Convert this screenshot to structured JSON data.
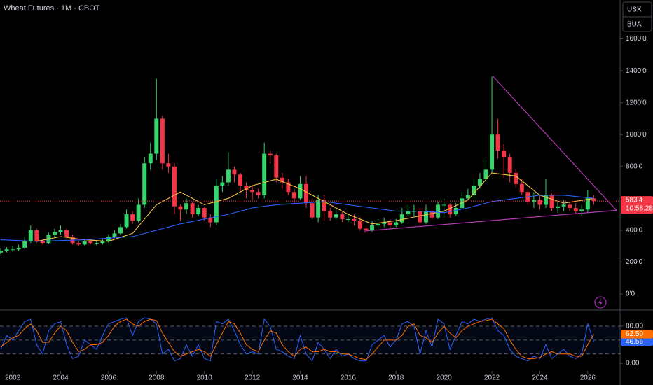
{
  "toolbar": {
    "currency": "USX",
    "unit": "BUA"
  },
  "chart_data": [
    {
      "type": "candlestick",
      "title": "Wheat Futures · 1M · CBOT",
      "xlim": [
        2001.47,
        2027.35
      ],
      "ylim": [
        -101,
        1844
      ],
      "xticks": [
        2002,
        2004,
        2006,
        2008,
        2010,
        2012,
        2014,
        2016,
        2018,
        2020,
        2022,
        2024,
        2026
      ],
      "yticks": [
        {
          "value": 0,
          "label": "0'0"
        },
        {
          "value": 200,
          "label": "200'0"
        },
        {
          "value": 400,
          "label": "400'0"
        },
        {
          "value": 800,
          "label": "800'0"
        },
        {
          "value": 1000,
          "label": "1000'0"
        },
        {
          "value": 1200,
          "label": "1200'0"
        },
        {
          "value": 1400,
          "label": "1400'0"
        },
        {
          "value": 1600,
          "label": "1600'0"
        }
      ],
      "up_color": "#36d46a",
      "down_color": "#f23645",
      "x": [
        2001.5,
        2001.75,
        2002,
        2002.25,
        2002.5,
        2002.75,
        2003,
        2003.25,
        2003.5,
        2003.75,
        2004,
        2004.25,
        2004.5,
        2004.75,
        2005,
        2005.25,
        2005.5,
        2005.75,
        2006,
        2006.25,
        2006.5,
        2006.75,
        2007,
        2007.25,
        2007.5,
        2007.75,
        2008,
        2008.25,
        2008.5,
        2008.75,
        2009,
        2009.25,
        2009.5,
        2009.75,
        2010,
        2010.25,
        2010.5,
        2010.75,
        2011,
        2011.25,
        2011.5,
        2011.75,
        2012,
        2012.25,
        2012.5,
        2012.75,
        2013,
        2013.25,
        2013.5,
        2013.75,
        2014,
        2014.25,
        2014.5,
        2014.75,
        2015,
        2015.25,
        2015.5,
        2015.75,
        2016,
        2016.25,
        2016.5,
        2016.75,
        2017,
        2017.25,
        2017.5,
        2017.75,
        2018,
        2018.25,
        2018.5,
        2018.75,
        2019,
        2019.25,
        2019.5,
        2019.75,
        2020,
        2020.25,
        2020.5,
        2020.75,
        2021,
        2021.25,
        2021.5,
        2021.75,
        2022,
        2022.25,
        2022.5,
        2022.75,
        2023,
        2023.25,
        2023.5,
        2023.75,
        2024,
        2024.25,
        2024.5,
        2024.75,
        2025,
        2025.25,
        2025.5,
        2025.75,
        2026,
        2026.25
      ],
      "open": [
        260,
        270,
        280,
        280,
        290,
        330,
        400,
        330,
        320,
        370,
        390,
        400,
        360,
        320,
        310,
        330,
        320,
        320,
        330,
        360,
        380,
        420,
        500,
        460,
        560,
        820,
        880,
        1100,
        820,
        800,
        550,
        530,
        570,
        500,
        540,
        480,
        450,
        680,
        700,
        780,
        750,
        680,
        650,
        640,
        620,
        880,
        870,
        730,
        700,
        640,
        600,
        690,
        570,
        480,
        590,
        520,
        480,
        500,
        470,
        470,
        460,
        410,
        400,
        430,
        440,
        450,
        430,
        450,
        500,
        520,
        520,
        450,
        520,
        480,
        560,
        560,
        500,
        540,
        600,
        620,
        680,
        720,
        780,
        1000,
        900,
        860,
        760,
        690,
        640,
        580,
        590,
        560,
        620,
        540,
        550,
        560,
        540,
        520,
        530,
        600
      ],
      "high": [
        285,
        295,
        300,
        310,
        360,
        430,
        410,
        345,
        385,
        410,
        430,
        410,
        370,
        335,
        345,
        340,
        335,
        345,
        375,
        400,
        440,
        530,
        520,
        600,
        860,
        950,
        1349,
        1120,
        880,
        820,
        560,
        600,
        580,
        560,
        550,
        500,
        720,
        740,
        890,
        800,
        760,
        700,
        680,
        660,
        950,
        900,
        880,
        760,
        720,
        660,
        740,
        740,
        600,
        620,
        620,
        540,
        530,
        520,
        500,
        500,
        480,
        430,
        460,
        470,
        480,
        470,
        470,
        540,
        560,
        560,
        540,
        560,
        540,
        580,
        600,
        570,
        570,
        640,
        660,
        720,
        760,
        840,
        1364,
        1100,
        940,
        880,
        780,
        720,
        660,
        640,
        620,
        720,
        630,
        580,
        590,
        580,
        570,
        560,
        650,
        620
      ],
      "low": [
        250,
        260,
        265,
        270,
        280,
        320,
        320,
        310,
        315,
        355,
        370,
        350,
        310,
        300,
        305,
        310,
        305,
        310,
        320,
        350,
        370,
        410,
        440,
        450,
        540,
        780,
        840,
        780,
        760,
        500,
        460,
        500,
        480,
        490,
        460,
        420,
        430,
        640,
        680,
        700,
        640,
        600,
        590,
        600,
        600,
        820,
        700,
        660,
        620,
        570,
        590,
        540,
        470,
        450,
        460,
        460,
        470,
        450,
        450,
        430,
        400,
        380,
        390,
        410,
        420,
        410,
        420,
        440,
        490,
        490,
        420,
        440,
        470,
        470,
        480,
        480,
        490,
        530,
        590,
        600,
        660,
        700,
        760,
        850,
        730,
        700,
        670,
        620,
        560,
        540,
        530,
        540,
        520,
        510,
        520,
        520,
        500,
        490,
        510,
        560
      ],
      "close": [
        270,
        280,
        280,
        290,
        330,
        400,
        330,
        320,
        370,
        390,
        400,
        360,
        320,
        310,
        330,
        320,
        320,
        330,
        360,
        380,
        420,
        500,
        460,
        560,
        820,
        880,
        1100,
        820,
        800,
        550,
        530,
        570,
        500,
        540,
        480,
        450,
        680,
        700,
        780,
        750,
        680,
        650,
        640,
        620,
        880,
        870,
        730,
        700,
        640,
        600,
        690,
        570,
        480,
        590,
        520,
        480,
        500,
        470,
        470,
        460,
        410,
        400,
        430,
        440,
        450,
        430,
        450,
        500,
        520,
        520,
        450,
        520,
        480,
        560,
        560,
        500,
        540,
        600,
        620,
        680,
        720,
        780,
        1000,
        900,
        860,
        760,
        690,
        640,
        580,
        590,
        560,
        620,
        540,
        550,
        560,
        540,
        520,
        530,
        600,
        583.5
      ],
      "last_price_label": "583'4",
      "countdown": "10:58:28",
      "price_line_color": "#f23645",
      "series": [
        {
          "color": "#f5c542",
          "x": [
            2003,
            2004,
            2005,
            2006,
            2007,
            2008,
            2009,
            2010,
            2011,
            2012,
            2013,
            2014,
            2015,
            2016,
            2017,
            2018,
            2019,
            2020,
            2021,
            2022,
            2023,
            2024,
            2025,
            2026.25
          ],
          "values": [
            330,
            360,
            340,
            330,
            380,
            560,
            640,
            560,
            600,
            680,
            720,
            660,
            580,
            500,
            440,
            460,
            490,
            520,
            590,
            760,
            740,
            620,
            570,
            600
          ]
        },
        {
          "color": "#2962ff",
          "x": [
            2001.5,
            2003,
            2005,
            2007,
            2008,
            2009,
            2010,
            2011,
            2012,
            2013,
            2014,
            2015,
            2016,
            2017,
            2018,
            2019,
            2020,
            2021,
            2022,
            2023,
            2024,
            2025,
            2026.25
          ],
          "values": [
            340,
            330,
            340,
            360,
            400,
            440,
            470,
            500,
            540,
            560,
            570,
            580,
            560,
            540,
            520,
            520,
            510,
            540,
            580,
            600,
            620,
            620,
            600
          ]
        }
      ],
      "drawings": [
        {
          "color": "#c13cc1",
          "x": [
            2022.05,
            2027.2
          ],
          "y": [
            1364,
            525
          ]
        },
        {
          "color": "#c13cc1",
          "x": [
            2016.65,
            2027.2
          ],
          "y": [
            395,
            525
          ]
        }
      ]
    },
    {
      "type": "line",
      "xlim": [
        2001.47,
        2027.35
      ],
      "ylim": [
        -16.6,
        114.7
      ],
      "yticks": [
        {
          "value": 80,
          "label": "80.00"
        },
        {
          "value": 0,
          "label": "0.00"
        }
      ],
      "levels": [
        20,
        50,
        80
      ],
      "x": [
        2001.5,
        2001.75,
        2002,
        2002.25,
        2002.5,
        2002.75,
        2003,
        2003.25,
        2003.5,
        2003.75,
        2004,
        2004.25,
        2004.5,
        2004.75,
        2005,
        2005.25,
        2005.5,
        2005.75,
        2006,
        2006.25,
        2006.5,
        2006.75,
        2007,
        2007.25,
        2007.5,
        2007.75,
        2008,
        2008.25,
        2008.5,
        2008.75,
        2009,
        2009.25,
        2009.5,
        2009.75,
        2010,
        2010.25,
        2010.5,
        2010.75,
        2011,
        2011.25,
        2011.5,
        2011.75,
        2012,
        2012.25,
        2012.5,
        2012.75,
        2013,
        2013.25,
        2013.5,
        2013.75,
        2014,
        2014.25,
        2014.5,
        2014.75,
        2015,
        2015.25,
        2015.5,
        2015.75,
        2016,
        2016.25,
        2016.5,
        2016.75,
        2017,
        2017.25,
        2017.5,
        2017.75,
        2018,
        2018.25,
        2018.5,
        2018.75,
        2019,
        2019.25,
        2019.5,
        2019.75,
        2020,
        2020.25,
        2020.5,
        2020.75,
        2021,
        2021.25,
        2021.5,
        2021.75,
        2022,
        2022.25,
        2022.5,
        2022.75,
        2023,
        2023.25,
        2023.5,
        2023.75,
        2024,
        2024.25,
        2024.5,
        2024.75,
        2025,
        2025.25,
        2025.5,
        2025.75,
        2026,
        2026.25
      ],
      "series": [
        {
          "color": "#2962ff",
          "last_value_label": "46.56",
          "values": [
            30,
            60,
            50,
            70,
            90,
            95,
            40,
            20,
            70,
            85,
            90,
            40,
            10,
            15,
            50,
            40,
            30,
            60,
            85,
            90,
            95,
            98,
            60,
            90,
            98,
            95,
            85,
            20,
            30,
            5,
            10,
            40,
            15,
            40,
            10,
            5,
            90,
            85,
            95,
            70,
            40,
            20,
            25,
            20,
            95,
            80,
            30,
            25,
            15,
            10,
            60,
            20,
            5,
            45,
            30,
            10,
            30,
            15,
            20,
            10,
            5,
            5,
            40,
            50,
            60,
            35,
            50,
            85,
            90,
            80,
            20,
            70,
            35,
            95,
            85,
            30,
            60,
            90,
            85,
            95,
            90,
            95,
            98,
            70,
            60,
            30,
            15,
            10,
            5,
            15,
            10,
            40,
            10,
            20,
            30,
            15,
            10,
            20,
            85,
            46.56
          ]
        },
        {
          "color": "#ff6d00",
          "last_value_label": "62.50",
          "values": [
            35,
            45,
            55,
            60,
            75,
            85,
            70,
            45,
            45,
            65,
            80,
            70,
            45,
            25,
            30,
            40,
            40,
            45,
            60,
            80,
            90,
            95,
            85,
            80,
            90,
            95,
            92,
            65,
            45,
            25,
            15,
            20,
            25,
            30,
            25,
            15,
            40,
            65,
            90,
            85,
            65,
            40,
            30,
            25,
            50,
            70,
            65,
            40,
            25,
            15,
            30,
            35,
            25,
            25,
            30,
            25,
            25,
            20,
            20,
            15,
            10,
            8,
            20,
            35,
            50,
            50,
            50,
            60,
            80,
            85,
            60,
            55,
            45,
            65,
            80,
            65,
            55,
            70,
            80,
            85,
            90,
            92,
            95,
            85,
            75,
            50,
            30,
            15,
            10,
            10,
            12,
            20,
            25,
            20,
            20,
            20,
            15,
            15,
            40,
            62.5
          ]
        }
      ]
    }
  ]
}
